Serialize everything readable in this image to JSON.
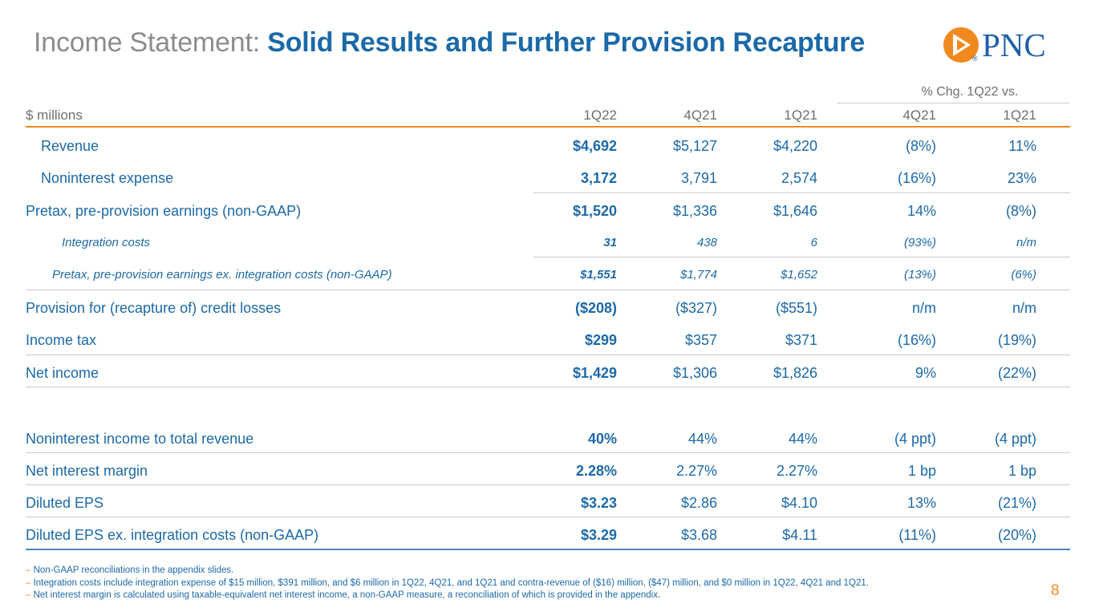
{
  "title": {
    "prefix": "Income Statement:",
    "main": "Solid Results and Further Provision Recapture"
  },
  "logo": {
    "text": "PNC",
    "registered": "®"
  },
  "colors": {
    "brand_blue": "#1b69a8",
    "accent_orange": "#f08a1e",
    "title_gray": "#8c8c8c"
  },
  "table": {
    "group_header": "% Chg. 1Q22 vs.",
    "columns": [
      "$ millions",
      "1Q22",
      "4Q21",
      "1Q21",
      "4Q21",
      "1Q21"
    ],
    "rows": [
      {
        "label": "Revenue",
        "values": [
          "$4,692",
          "$5,127",
          "$4,220",
          "(8%)",
          "11%"
        ]
      },
      {
        "label": "Noninterest expense",
        "values": [
          "3,172",
          "3,791",
          "2,574",
          "(16%)",
          "23%"
        ]
      },
      {
        "label": "Pretax, pre-provision earnings (non-GAAP)",
        "values": [
          "$1,520",
          "$1,336",
          "$1,646",
          "14%",
          "(8%)"
        ]
      },
      {
        "label": "Integration costs",
        "values": [
          "31",
          "438",
          "6",
          "(93%)",
          "n/m"
        ]
      },
      {
        "label": "Pretax, pre-provision earnings ex. integration costs (non-GAAP)",
        "values": [
          "$1,551",
          "$1,774",
          "$1,652",
          "(13%)",
          "(6%)"
        ]
      },
      {
        "label": "Provision for (recapture of) credit losses",
        "values": [
          "($208)",
          "($327)",
          "($551)",
          "n/m",
          "n/m"
        ]
      },
      {
        "label": "Income tax",
        "values": [
          "$299",
          "$357",
          "$371",
          "(16%)",
          "(19%)"
        ]
      },
      {
        "label": "Net income",
        "values": [
          "$1,429",
          "$1,306",
          "$1,826",
          "9%",
          "(22%)"
        ]
      },
      {
        "label": "Noninterest income to total revenue",
        "values": [
          "40%",
          "44%",
          "44%",
          "(4 ppt)",
          "(4 ppt)"
        ]
      },
      {
        "label": "Net interest margin",
        "values": [
          "2.28%",
          "2.27%",
          "2.27%",
          "1 bp",
          "1 bp"
        ]
      },
      {
        "label": "Diluted EPS",
        "values": [
          "$3.23",
          "$2.86",
          "$4.10",
          "13%",
          "(21%)"
        ]
      },
      {
        "label": "Diluted EPS ex. integration costs (non-GAAP)",
        "values": [
          "$3.29",
          "$3.68",
          "$4.11",
          "(11%)",
          "(20%)"
        ]
      }
    ]
  },
  "footnotes": [
    "Non-GAAP reconciliations in the appendix slides.",
    "Integration costs include integration expense of $15 million, $391 million, and $6 million in 1Q22, 4Q21, and 1Q21 and contra-revenue of ($16) million, ($47) million, and $0 million in 1Q22, 4Q21 and 1Q21.",
    "Net interest margin is calculated using taxable-equivalent net interest income, a non-GAAP measure, a reconciliation of which is provided in the appendix."
  ],
  "page_number": "8"
}
